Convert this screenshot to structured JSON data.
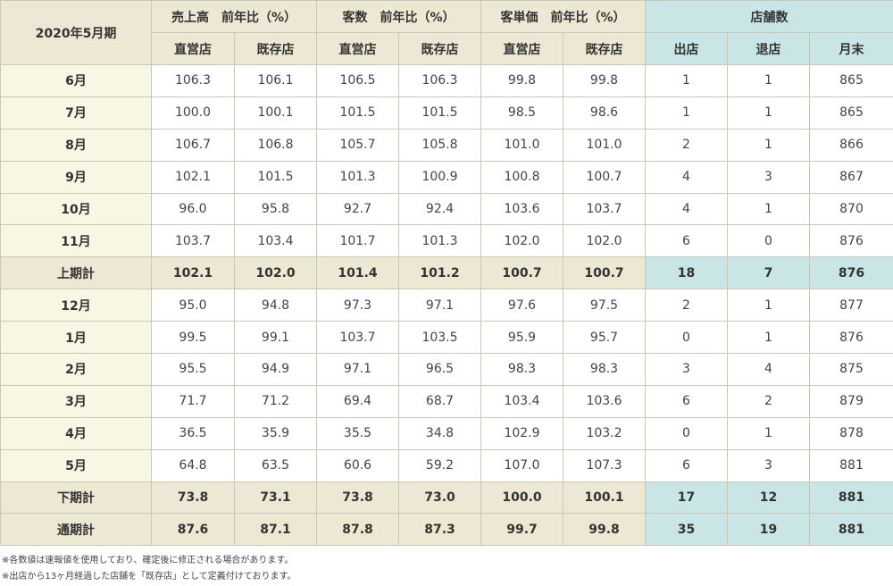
{
  "table": {
    "period_label": "2020年5月期",
    "groups": [
      "売上高　前年比（%）",
      "客数　前年比（%）",
      "客単価　前年比（%）",
      "店舗数"
    ],
    "subheaders": [
      "直営店",
      "既存店",
      "直営店",
      "既存店",
      "直営店",
      "既存店",
      "出店",
      "退店",
      "月末"
    ],
    "rows": [
      {
        "label": "6月",
        "type": "month",
        "values": [
          "106.3",
          "106.1",
          "106.5",
          "106.3",
          "99.8",
          "99.8",
          "1",
          "1",
          "865"
        ]
      },
      {
        "label": "7月",
        "type": "month",
        "values": [
          "100.0",
          "100.1",
          "101.5",
          "101.5",
          "98.5",
          "98.6",
          "1",
          "1",
          "865"
        ]
      },
      {
        "label": "8月",
        "type": "month",
        "values": [
          "106.7",
          "106.8",
          "105.7",
          "105.8",
          "101.0",
          "101.0",
          "2",
          "1",
          "866"
        ]
      },
      {
        "label": "9月",
        "type": "month",
        "values": [
          "102.1",
          "101.5",
          "101.3",
          "100.9",
          "100.8",
          "100.7",
          "4",
          "3",
          "867"
        ]
      },
      {
        "label": "10月",
        "type": "month",
        "values": [
          "96.0",
          "95.8",
          "92.7",
          "92.4",
          "103.6",
          "103.7",
          "4",
          "1",
          "870"
        ]
      },
      {
        "label": "11月",
        "type": "month",
        "values": [
          "103.7",
          "103.4",
          "101.7",
          "101.3",
          "102.0",
          "102.0",
          "6",
          "0",
          "876"
        ]
      },
      {
        "label": "上期計",
        "type": "total",
        "values": [
          "102.1",
          "102.0",
          "101.4",
          "101.2",
          "100.7",
          "100.7",
          "18",
          "7",
          "876"
        ]
      },
      {
        "label": "12月",
        "type": "month",
        "values": [
          "95.0",
          "94.8",
          "97.3",
          "97.1",
          "97.6",
          "97.5",
          "2",
          "1",
          "877"
        ]
      },
      {
        "label": "1月",
        "type": "month",
        "values": [
          "99.5",
          "99.1",
          "103.7",
          "103.5",
          "95.9",
          "95.7",
          "0",
          "1",
          "876"
        ]
      },
      {
        "label": "2月",
        "type": "month",
        "values": [
          "95.5",
          "94.9",
          "97.1",
          "96.5",
          "98.3",
          "98.3",
          "3",
          "4",
          "875"
        ]
      },
      {
        "label": "3月",
        "type": "month",
        "values": [
          "71.7",
          "71.2",
          "69.4",
          "68.7",
          "103.4",
          "103.6",
          "6",
          "2",
          "879"
        ]
      },
      {
        "label": "4月",
        "type": "month",
        "values": [
          "36.5",
          "35.9",
          "35.5",
          "34.8",
          "102.9",
          "103.2",
          "0",
          "1",
          "878"
        ]
      },
      {
        "label": "5月",
        "type": "month",
        "values": [
          "64.8",
          "63.5",
          "60.6",
          "59.2",
          "107.0",
          "107.3",
          "6",
          "3",
          "881"
        ]
      },
      {
        "label": "下期計",
        "type": "total",
        "values": [
          "73.8",
          "73.1",
          "73.8",
          "73.0",
          "100.0",
          "100.1",
          "17",
          "12",
          "881"
        ]
      },
      {
        "label": "通期計",
        "type": "total",
        "values": [
          "87.6",
          "87.1",
          "87.8",
          "87.3",
          "99.7",
          "99.8",
          "35",
          "19",
          "881"
        ]
      }
    ]
  },
  "notes": [
    "※各数値は速報値を使用しており、確定後に修正される場合があります。",
    "※出店から13ヶ月経過した店舗を「既存店」として定義付けております。"
  ],
  "colors": {
    "header_bg": "#ede8d3",
    "store_header_bg": "#c9e5e6",
    "row_label_bg": "#f8f7e4",
    "border": "#c8c8b8"
  }
}
